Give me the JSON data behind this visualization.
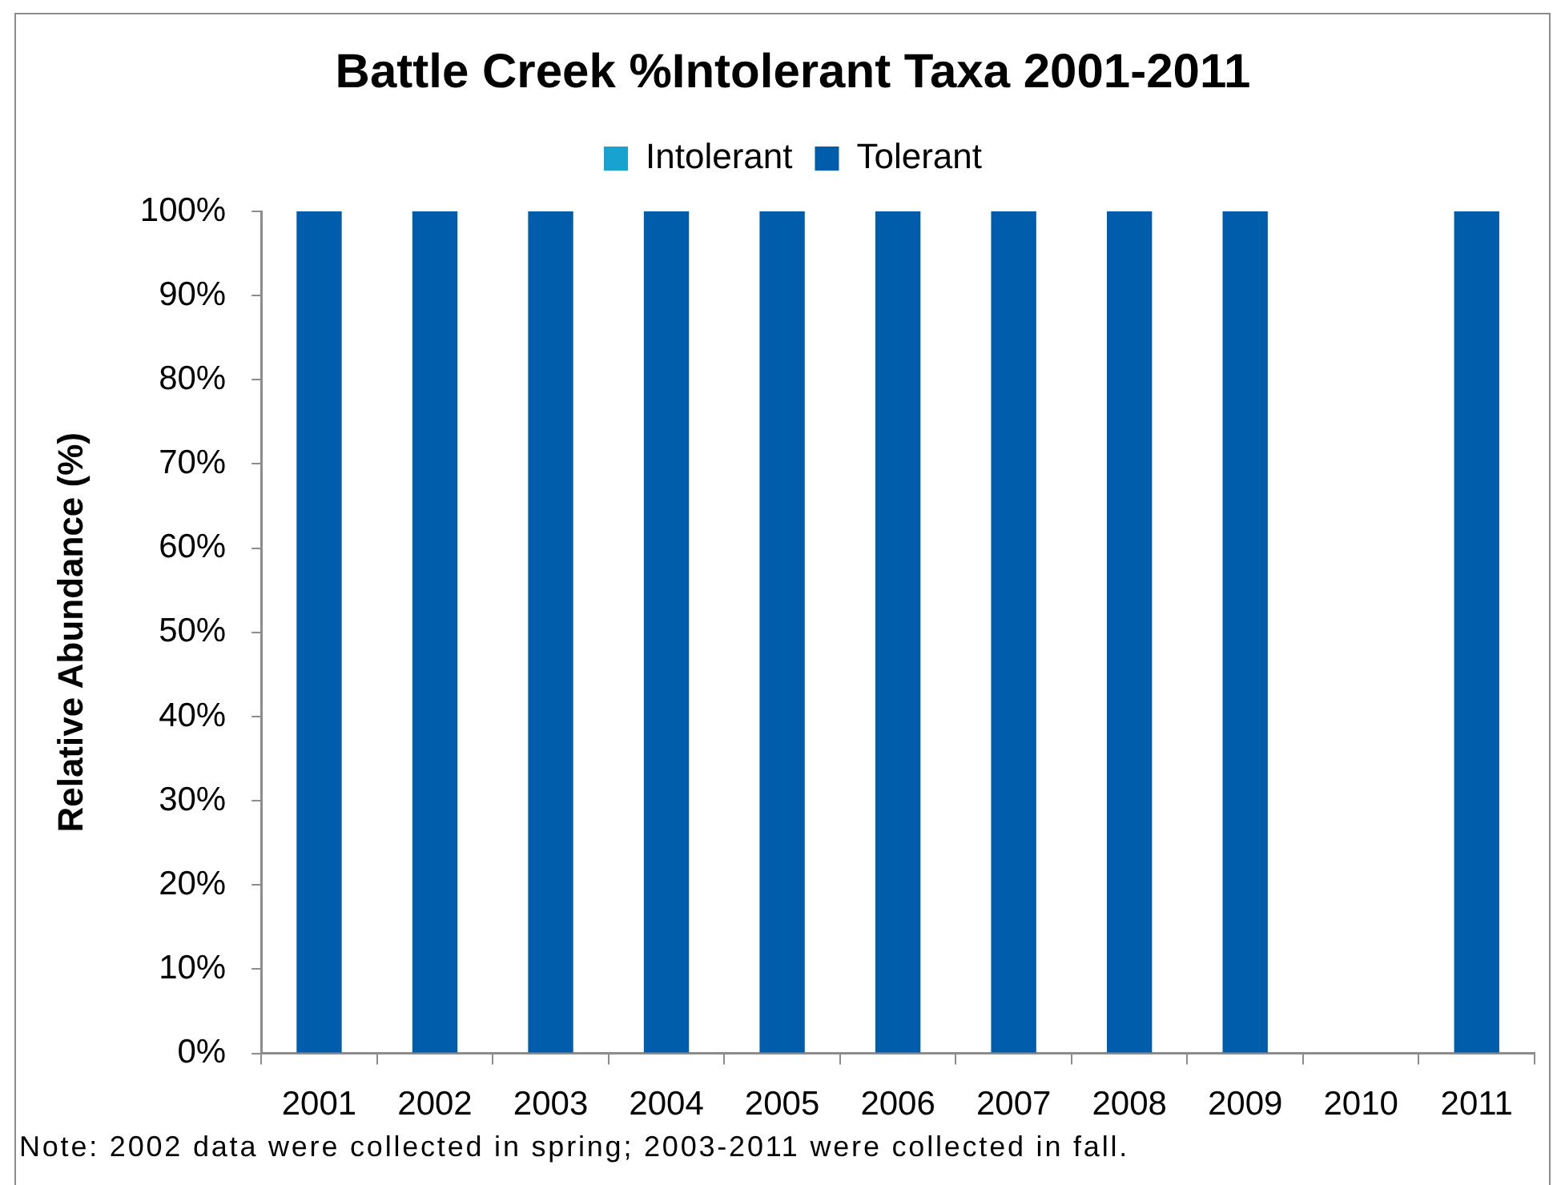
{
  "chart_data": {
    "type": "bar",
    "title": "Battle Creek %Intolerant Taxa 2001-2011",
    "ylabel": "Relative Abundance (%)",
    "annotations": [
      "Note: 2002 data were collected in spring; 2003-2011 were collected in fall."
    ],
    "categories": [
      "2001",
      "2002",
      "2003",
      "2004",
      "2005",
      "2006",
      "2007",
      "2008",
      "2009",
      "2010",
      "2011"
    ],
    "series": [
      {
        "name": "Intolerant",
        "color": "#17a2d0",
        "values": [
          0,
          0,
          0,
          0,
          0,
          0,
          0,
          0,
          0,
          null,
          0
        ]
      },
      {
        "name": "Tolerant",
        "color": "#005dab",
        "values": [
          100,
          100,
          100,
          100,
          100,
          100,
          100,
          100,
          100,
          null,
          100
        ]
      }
    ],
    "stacked": true,
    "ylim": [
      0,
      100
    ],
    "yticks": [
      {
        "value": 0,
        "label": "0%"
      },
      {
        "value": 10,
        "label": "10%"
      },
      {
        "value": 20,
        "label": "20%"
      },
      {
        "value": 30,
        "label": "30%"
      },
      {
        "value": 40,
        "label": "40%"
      },
      {
        "value": 50,
        "label": "50%"
      },
      {
        "value": 60,
        "label": "60%"
      },
      {
        "value": 70,
        "label": "70%"
      },
      {
        "value": 80,
        "label": "80%"
      },
      {
        "value": 90,
        "label": "90%"
      },
      {
        "value": 100,
        "label": "100%"
      }
    ],
    "grid": false,
    "legend": "top"
  }
}
